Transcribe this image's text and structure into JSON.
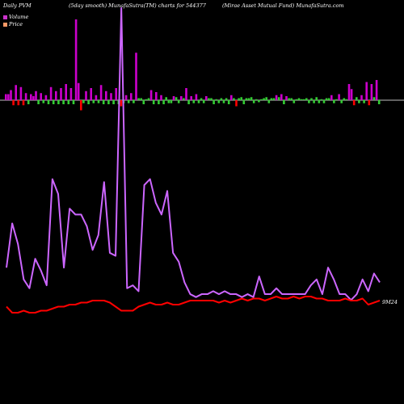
{
  "header": {
    "left": "Daily PVM",
    "middle": "(5day smooth) MunafaSutra(TM) charts for 544377",
    "right": "(Mirae   Asset Mutual Fund) MunafaSutra.com"
  },
  "legend": [
    {
      "label": "Volume",
      "color": "#cc33cc"
    },
    {
      "label": "Price",
      "color": "#ff9966"
    }
  ],
  "last_label": "9M24",
  "colors": {
    "volume_up": "#cc00cc",
    "volume_down": "#ff0000",
    "volume_small": "#33cc33",
    "volume_line": "#cc66ff",
    "price_line": "#ff0000",
    "background": "#000000",
    "zero_line": "#ffffff"
  },
  "chart_data": {
    "type": "line",
    "series": [
      {
        "name": "Volume",
        "values": [
          12,
          27,
          20,
          8,
          5,
          15,
          11,
          6,
          42,
          37,
          12,
          32,
          30,
          30,
          26,
          18,
          23,
          41,
          17,
          16,
          100,
          5,
          6,
          4,
          40,
          42,
          34,
          30,
          38,
          17,
          14,
          7,
          3,
          2,
          3,
          3,
          4,
          3,
          4,
          3,
          3,
          2,
          3,
          2,
          9,
          3,
          3,
          5,
          3,
          3,
          3,
          3,
          3,
          6,
          8,
          3,
          12,
          8,
          3,
          3,
          1,
          3,
          8,
          4,
          10,
          7
        ]
      },
      {
        "name": "Price",
        "values": [
          5,
          2,
          2,
          3,
          2,
          2,
          3,
          3,
          4,
          5,
          5,
          6,
          6,
          7,
          7,
          8,
          8,
          8,
          7,
          5,
          3,
          3,
          3,
          5,
          6,
          7,
          6,
          6,
          7,
          6,
          6,
          7,
          8,
          8,
          8,
          8,
          8,
          7,
          8,
          7,
          8,
          9,
          8,
          9,
          9,
          8,
          9,
          10,
          9,
          9,
          10,
          9,
          10,
          10,
          9,
          9,
          8,
          8,
          8,
          9,
          8,
          8,
          9,
          6,
          7,
          8
        ]
      }
    ],
    "volume_bars": [
      6,
      6,
      10,
      -5,
      15,
      -5,
      13,
      -5,
      7,
      -4,
      6,
      4,
      9,
      -4,
      7,
      -3,
      5,
      -4,
      13,
      -4,
      9,
      -4,
      12,
      -4,
      16,
      -4,
      12,
      -4,
      80,
      17,
      -10,
      -3,
      9,
      -4,
      12,
      -3,
      5,
      -3,
      15,
      -4,
      9,
      -4,
      7,
      -4,
      12,
      -4,
      -6,
      -3,
      5,
      -3,
      7,
      -3,
      47,
      2,
      2,
      -4,
      1,
      2,
      10,
      -4,
      8,
      -4,
      5,
      -4,
      3,
      -3,
      -3,
      4,
      3,
      -3,
      4,
      2,
      12,
      -4,
      4,
      -3,
      6,
      -3,
      2,
      -3,
      4,
      2,
      2,
      -4,
      1,
      -3,
      2,
      -3,
      2,
      -4,
      5,
      2,
      -6,
      2,
      3,
      -4,
      2,
      2,
      3,
      -3,
      1,
      -2,
      1,
      2,
      3,
      -3,
      2,
      2,
      5,
      3,
      6,
      -4,
      4,
      2,
      2,
      -3,
      1,
      2,
      1,
      1,
      2,
      -3,
      2,
      -3,
      3,
      -3,
      1,
      -3,
      2,
      2,
      5,
      -3,
      1,
      6,
      -3,
      2,
      1,
      16,
      11,
      -5,
      3,
      -3,
      5,
      -3,
      18,
      -5,
      16,
      3,
      20,
      -4
    ]
  }
}
